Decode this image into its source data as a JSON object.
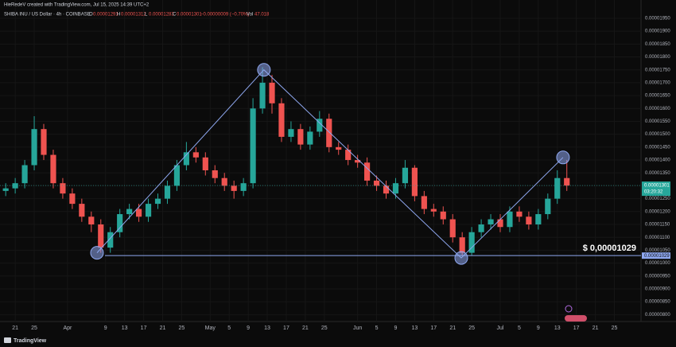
{
  "header": {
    "credit": "HieRedeV created with TradingView.com, Jul 15, 2025 14:39 UTC+2",
    "symbol": "SHIBA INU / US Dollar · 4h · COINBASE",
    "ohlc": [
      {
        "key": "O",
        "value": "0.00001291"
      },
      {
        "key": "H",
        "value": "0.00001312"
      },
      {
        "key": "L",
        "value": "0.00001283"
      },
      {
        "key": "C",
        "value": "0.00001301"
      }
    ],
    "change": "−0.00000009 (−0.70%)",
    "volume_key": "Vol",
    "volume": "47.018"
  },
  "footer": {
    "brand": "TradingView"
  },
  "chart_data": {
    "type": "candlestick",
    "up_color": "#26a69a",
    "down_color": "#ef5350",
    "grid": true,
    "x": [
      -2,
      0,
      2,
      4,
      6,
      8,
      10,
      12,
      14,
      16,
      18,
      20,
      22,
      24,
      26,
      28,
      30,
      32,
      34,
      36,
      38,
      40,
      42,
      44,
      46,
      48,
      50,
      52,
      54,
      56,
      58,
      60,
      62,
      64,
      66,
      68,
      70,
      72,
      74,
      76,
      78,
      80,
      82,
      84,
      86,
      88,
      90,
      92,
      94,
      96,
      98,
      100,
      102,
      104,
      106,
      108,
      110,
      112,
      114,
      116
    ],
    "open": [
      1.28e-05,
      1.29e-05,
      1.31e-05,
      1.38e-05,
      1.52e-05,
      1.42e-05,
      1.31e-05,
      1.27e-05,
      1.23e-05,
      1.18e-05,
      1.15e-05,
      1.06e-05,
      1.12e-05,
      1.19e-05,
      1.21e-05,
      1.18e-05,
      1.23e-05,
      1.25e-05,
      1.3e-05,
      1.38e-05,
      1.43e-05,
      1.41e-05,
      1.36e-05,
      1.33e-05,
      1.3e-05,
      1.28e-05,
      1.31e-05,
      1.6e-05,
      1.7e-05,
      1.62e-05,
      1.49e-05,
      1.52e-05,
      1.46e-05,
      1.51e-05,
      1.56e-05,
      1.45e-05,
      1.44e-05,
      1.4e-05,
      1.39e-05,
      1.32e-05,
      1.3e-05,
      1.27e-05,
      1.31e-05,
      1.37e-05,
      1.26e-05,
      1.21e-05,
      1.2e-05,
      1.17e-05,
      1.1e-05,
      1.04e-05,
      1.12e-05,
      1.15e-05,
      1.17e-05,
      1.14e-05,
      1.2e-05,
      1.18e-05,
      1.15e-05,
      1.19e-05,
      1.25e-05,
      1.33e-05
    ],
    "high": [
      1.31e-05,
      1.33e-05,
      1.4e-05,
      1.57e-05,
      1.54e-05,
      1.44e-05,
      1.33e-05,
      1.29e-05,
      1.25e-05,
      1.2e-05,
      1.17e-05,
      1.14e-05,
      1.21e-05,
      1.23e-05,
      1.23e-05,
      1.25e-05,
      1.27e-05,
      1.32e-05,
      1.4e-05,
      1.47e-05,
      1.45e-05,
      1.43e-05,
      1.38e-05,
      1.35e-05,
      1.32e-05,
      1.33e-05,
      1.64e-05,
      1.76e-05,
      1.73e-05,
      1.64e-05,
      1.55e-05,
      1.54e-05,
      1.53e-05,
      1.59e-05,
      1.58e-05,
      1.47e-05,
      1.46e-05,
      1.42e-05,
      1.41e-05,
      1.34e-05,
      1.32e-05,
      1.33e-05,
      1.4e-05,
      1.38e-05,
      1.28e-05,
      1.23e-05,
      1.22e-05,
      1.19e-05,
      1.12e-05,
      1.14e-05,
      1.17e-05,
      1.19e-05,
      1.19e-05,
      1.22e-05,
      1.22e-05,
      1.2e-05,
      1.21e-05,
      1.27e-05,
      1.36e-05,
      1.4e-05
    ],
    "low": [
      1.26e-05,
      1.27e-05,
      1.29e-05,
      1.36e-05,
      1.4e-05,
      1.29e-05,
      1.25e-05,
      1.21e-05,
      1.16e-05,
      1.12e-05,
      1.04e-05,
      1.04e-05,
      1.1e-05,
      1.17e-05,
      1.16e-05,
      1.16e-05,
      1.21e-05,
      1.23e-05,
      1.28e-05,
      1.36e-05,
      1.39e-05,
      1.34e-05,
      1.31e-05,
      1.28e-05,
      1.25e-05,
      1.26e-05,
      1.29e-05,
      1.58e-05,
      1.58e-05,
      1.47e-05,
      1.47e-05,
      1.44e-05,
      1.44e-05,
      1.49e-05,
      1.43e-05,
      1.42e-05,
      1.38e-05,
      1.37e-05,
      1.3e-05,
      1.28e-05,
      1.25e-05,
      1.25e-05,
      1.29e-05,
      1.24e-05,
      1.19e-05,
      1.18e-05,
      1.15e-05,
      1.08e-05,
      1.029e-05,
      1.03e-05,
      1.1e-05,
      1.13e-05,
      1.12e-05,
      1.12e-05,
      1.16e-05,
      1.13e-05,
      1.13e-05,
      1.17e-05,
      1.23e-05,
      1.28e-05
    ],
    "close": [
      1.29e-05,
      1.31e-05,
      1.38e-05,
      1.52e-05,
      1.42e-05,
      1.31e-05,
      1.27e-05,
      1.23e-05,
      1.18e-05,
      1.15e-05,
      1.06e-05,
      1.12e-05,
      1.19e-05,
      1.21e-05,
      1.18e-05,
      1.23e-05,
      1.25e-05,
      1.3e-05,
      1.38e-05,
      1.43e-05,
      1.41e-05,
      1.36e-05,
      1.33e-05,
      1.3e-05,
      1.28e-05,
      1.31e-05,
      1.6e-05,
      1.7e-05,
      1.62e-05,
      1.49e-05,
      1.52e-05,
      1.46e-05,
      1.51e-05,
      1.56e-05,
      1.45e-05,
      1.44e-05,
      1.4e-05,
      1.39e-05,
      1.32e-05,
      1.3e-05,
      1.27e-05,
      1.31e-05,
      1.37e-05,
      1.26e-05,
      1.21e-05,
      1.2e-05,
      1.17e-05,
      1.1e-05,
      1.04e-05,
      1.12e-05,
      1.15e-05,
      1.17e-05,
      1.14e-05,
      1.2e-05,
      1.18e-05,
      1.15e-05,
      1.19e-05,
      1.25e-05,
      1.33e-05,
      1.301e-05
    ],
    "pattern": {
      "color": "#8fa8f0",
      "x": [
        17.2,
        52.3,
        93.8,
        115.2
      ],
      "y": [
        1.04e-05,
        1.75e-05,
        1.02e-05,
        1.41e-05
      ]
    },
    "support": {
      "value": 1.029e-05,
      "label": "0.00001029",
      "annotation": "$ 0,00001029",
      "color": "#8fa8f0"
    },
    "last_price": {
      "value": 1.301e-05,
      "label": "0.00001301",
      "countdown": "03:20:32",
      "color": "#26a69a"
    },
    "xlim": [
      -3.2,
      131.6
    ],
    "xticks": [
      {
        "value": 0,
        "label": "21"
      },
      {
        "value": 4,
        "label": "25"
      },
      {
        "value": 11,
        "label": "Apr"
      },
      {
        "value": 19,
        "label": "9"
      },
      {
        "value": 23,
        "label": "13"
      },
      {
        "value": 27,
        "label": "17"
      },
      {
        "value": 31,
        "label": "21"
      },
      {
        "value": 35,
        "label": "25"
      },
      {
        "value": 41,
        "label": "May"
      },
      {
        "value": 45,
        "label": "5"
      },
      {
        "value": 49,
        "label": "9"
      },
      {
        "value": 53,
        "label": "13"
      },
      {
        "value": 57,
        "label": "17"
      },
      {
        "value": 61,
        "label": "21"
      },
      {
        "value": 65,
        "label": "25"
      },
      {
        "value": 72,
        "label": "Jun"
      },
      {
        "value": 76,
        "label": "5"
      },
      {
        "value": 80,
        "label": "9"
      },
      {
        "value": 84,
        "label": "13"
      },
      {
        "value": 88,
        "label": "17"
      },
      {
        "value": 92,
        "label": "21"
      },
      {
        "value": 96,
        "label": "25"
      },
      {
        "value": 102,
        "label": "Jul"
      },
      {
        "value": 106,
        "label": "5"
      },
      {
        "value": 110,
        "label": "9"
      },
      {
        "value": 114,
        "label": "13"
      },
      {
        "value": 118,
        "label": "17"
      },
      {
        "value": 122,
        "label": "21"
      },
      {
        "value": 126,
        "label": "25"
      }
    ],
    "ylim": [
      7.3e-06,
      1.99e-05
    ],
    "yticks": [
      {
        "value": 1.95e-05,
        "label": "0.00001950"
      },
      {
        "value": 1.9e-05,
        "label": "0.00001900"
      },
      {
        "value": 1.85e-05,
        "label": "0.00001850"
      },
      {
        "value": 1.8e-05,
        "label": "0.00001800"
      },
      {
        "value": 1.75e-05,
        "label": "0.00001750"
      },
      {
        "value": 1.7e-05,
        "label": "0.00001700"
      },
      {
        "value": 1.65e-05,
        "label": "0.00001650"
      },
      {
        "value": 1.6e-05,
        "label": "0.00001600"
      },
      {
        "value": 1.55e-05,
        "label": "0.00001550"
      },
      {
        "value": 1.5e-05,
        "label": "0.00001500"
      },
      {
        "value": 1.45e-05,
        "label": "0.00001450"
      },
      {
        "value": 1.4e-05,
        "label": "0.00001400"
      },
      {
        "value": 1.35e-05,
        "label": "0.00001350"
      },
      {
        "value": 1.3e-05,
        "label": "0.00001300"
      },
      {
        "value": 1.25e-05,
        "label": "0.00001250"
      },
      {
        "value": 1.2e-05,
        "label": "0.00001200"
      },
      {
        "value": 1.15e-05,
        "label": "0.00001150"
      },
      {
        "value": 1.1e-05,
        "label": "0.00001100"
      },
      {
        "value": 1.05e-05,
        "label": "0.00001050"
      },
      {
        "value": 1e-05,
        "label": "0.00001000"
      },
      {
        "value": 9.5e-06,
        "label": "0.00000950"
      },
      {
        "value": 9e-06,
        "label": "0.00000900"
      },
      {
        "value": 8.5e-06,
        "label": "0.00000850"
      },
      {
        "value": 8e-06,
        "label": "0.00000800"
      }
    ]
  }
}
